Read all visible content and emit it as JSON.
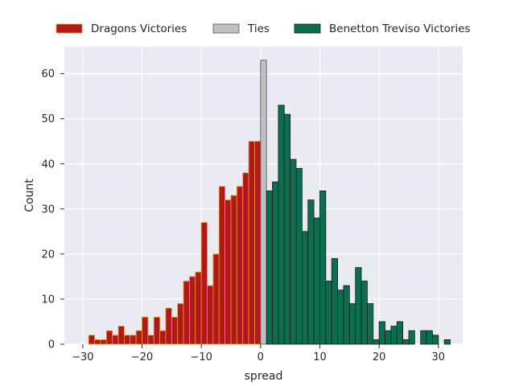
{
  "chart_data": {
    "type": "bar",
    "title": "",
    "xlabel": "spread",
    "ylabel": "Count",
    "xlim": [
      -33.1,
      34.1
    ],
    "ylim": [
      0,
      66
    ],
    "x_ticks": [
      -30,
      -20,
      -10,
      0,
      10,
      20,
      30
    ],
    "y_ticks": [
      0,
      10,
      20,
      30,
      40,
      50,
      60
    ],
    "grid": true,
    "legend_position": "top",
    "bin_width": 1,
    "series": [
      {
        "name": "Dragons Victories",
        "color": "#b3161b",
        "edge_color": "#e8a025",
        "bins": [
          {
            "x": -29,
            "count": 2
          },
          {
            "x": -28,
            "count": 1
          },
          {
            "x": -27,
            "count": 1
          },
          {
            "x": -26,
            "count": 3
          },
          {
            "x": -25,
            "count": 2
          },
          {
            "x": -24,
            "count": 4
          },
          {
            "x": -23,
            "count": 2
          },
          {
            "x": -22,
            "count": 2
          },
          {
            "x": -21,
            "count": 3
          },
          {
            "x": -20,
            "count": 6
          },
          {
            "x": -19,
            "count": 2
          },
          {
            "x": -18,
            "count": 6
          },
          {
            "x": -17,
            "count": 3
          },
          {
            "x": -16,
            "count": 8
          },
          {
            "x": -15,
            "count": 6
          },
          {
            "x": -14,
            "count": 9
          },
          {
            "x": -13,
            "count": 14
          },
          {
            "x": -12,
            "count": 15
          },
          {
            "x": -11,
            "count": 16
          },
          {
            "x": -10,
            "count": 27
          },
          {
            "x": -9,
            "count": 13
          },
          {
            "x": -8,
            "count": 20
          },
          {
            "x": -7,
            "count": 35
          },
          {
            "x": -6,
            "count": 32
          },
          {
            "x": -5,
            "count": 33
          },
          {
            "x": -4,
            "count": 35
          },
          {
            "x": -3,
            "count": 38
          },
          {
            "x": -2,
            "count": 45
          },
          {
            "x": -1,
            "count": 45
          }
        ]
      },
      {
        "name": "Ties",
        "color": "#c0c0c0",
        "edge_color": "#555555",
        "bins": [
          {
            "x": 0,
            "count": 63
          }
        ]
      },
      {
        "name": "Benetton Treviso Victories",
        "color": "#0b6e4f",
        "edge_color": "#1a1a1a",
        "bins": [
          {
            "x": 1,
            "count": 34
          },
          {
            "x": 2,
            "count": 36
          },
          {
            "x": 3,
            "count": 53
          },
          {
            "x": 4,
            "count": 51
          },
          {
            "x": 5,
            "count": 41
          },
          {
            "x": 6,
            "count": 39
          },
          {
            "x": 7,
            "count": 25
          },
          {
            "x": 8,
            "count": 32
          },
          {
            "x": 9,
            "count": 28
          },
          {
            "x": 10,
            "count": 34
          },
          {
            "x": 11,
            "count": 14
          },
          {
            "x": 12,
            "count": 19
          },
          {
            "x": 13,
            "count": 12
          },
          {
            "x": 14,
            "count": 13
          },
          {
            "x": 15,
            "count": 9
          },
          {
            "x": 16,
            "count": 17
          },
          {
            "x": 17,
            "count": 14
          },
          {
            "x": 18,
            "count": 9
          },
          {
            "x": 19,
            "count": 1
          },
          {
            "x": 20,
            "count": 5
          },
          {
            "x": 21,
            "count": 3
          },
          {
            "x": 22,
            "count": 4
          },
          {
            "x": 23,
            "count": 5
          },
          {
            "x": 24,
            "count": 1
          },
          {
            "x": 25,
            "count": 3
          },
          {
            "x": 27,
            "count": 3
          },
          {
            "x": 28,
            "count": 3
          },
          {
            "x": 29,
            "count": 2
          },
          {
            "x": 31,
            "count": 1
          }
        ]
      }
    ]
  }
}
